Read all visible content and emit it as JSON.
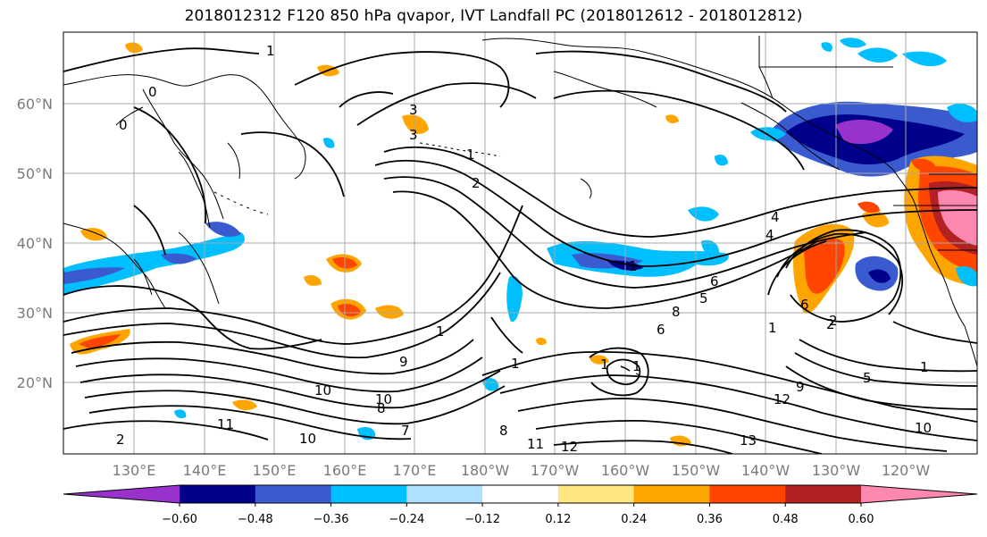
{
  "title": "2018012312 F120 850 hPa qvapor, IVT Landfall PC (2018012612 - 2018012812)",
  "latitude_labels": [
    "60°N",
    "50°N",
    "40°N",
    "30°N",
    "20°N"
  ],
  "longitude_labels": [
    "130°E",
    "140°E",
    "150°E",
    "160°E",
    "170°E",
    "180°W",
    "170°W",
    "160°W",
    "150°W",
    "140°W",
    "130°W",
    "120°W"
  ],
  "colorbar": {
    "ticks": [
      "−0.60",
      "−0.48",
      "−0.36",
      "−0.24",
      "−0.12",
      "0.12",
      "0.24",
      "0.36",
      "0.48",
      "0.60"
    ],
    "colors": [
      "#9932cc",
      "#00008b",
      "#3a5bd0",
      "#00bfff",
      "#b0e0ff",
      "#ffffff",
      "#ffe680",
      "#ffa500",
      "#ff4500",
      "#b22222",
      "#ff88b0"
    ]
  },
  "contour_labels": [
    "1",
    "0",
    "0",
    "3",
    "1",
    "2",
    "4",
    "6",
    "8",
    "1",
    "9",
    "10",
    "11",
    "8",
    "7",
    "8",
    "11",
    "12",
    "13",
    "12",
    "9",
    "1",
    "10",
    "2",
    "5",
    "1",
    "1",
    "1",
    "1",
    "2",
    "1",
    "5",
    "3",
    "10",
    "6",
    "4",
    "6",
    "10",
    "2"
  ]
}
